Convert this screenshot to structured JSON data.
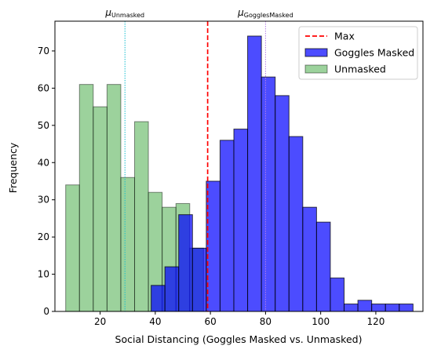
{
  "chart_data": {
    "type": "bar",
    "xlabel": "Social Distancing (Goggles Masked vs. Unmasked)",
    "ylabel": "Frequency",
    "xlim": [
      3.6,
      137.1
    ],
    "ylim": [
      0,
      78
    ],
    "xticks": [
      20,
      40,
      60,
      80,
      100,
      120
    ],
    "yticks": [
      0,
      10,
      20,
      30,
      40,
      50,
      60,
      70
    ],
    "grid": false,
    "legend_position": "top-right",
    "series": [
      {
        "name": "Unmasked",
        "color": "#2ca02c",
        "edge_color": "#000000",
        "bin_width": 5.0,
        "bin_starts": [
          7.5,
          12.5,
          17.5,
          22.5,
          27.5,
          32.5,
          37.5,
          42.5,
          47.5,
          52.5
        ],
        "values": [
          34,
          61,
          55,
          61,
          36,
          51,
          32,
          28,
          29,
          17
        ]
      },
      {
        "name": "Goggles Masked",
        "color": "#0000ff",
        "edge_color": "#000000",
        "bin_width": 5.0,
        "bin_starts": [
          38.5,
          43.5,
          48.5,
          53.5,
          58.5,
          63.5,
          68.5,
          73.5,
          78.5,
          83.5,
          88.5,
          93.5,
          98.5,
          103.5,
          108.5,
          113.5,
          118.5,
          123.5,
          128.5
        ],
        "values": [
          7,
          12,
          26,
          17,
          35,
          46,
          49,
          74,
          63,
          58,
          47,
          28,
          24,
          9,
          2,
          3,
          2,
          2,
          2
        ]
      }
    ],
    "reference_lines": [
      {
        "name": "Max",
        "x": 59,
        "color": "#ff0000",
        "style": "dashed",
        "in_legend": true
      },
      {
        "name": "mu-unmasked",
        "x": 29,
        "color": "#17becf",
        "style": "dotted",
        "in_legend": false,
        "label": "μ",
        "label_sub": "Unmasked"
      },
      {
        "name": "mu-goggles",
        "x": 80,
        "color": "#b57fe5",
        "style": "dotted",
        "in_legend": false,
        "label": "μ",
        "label_sub": "GogglesMasked"
      }
    ],
    "legend_order": [
      "Max",
      "Goggles Masked",
      "Unmasked"
    ]
  }
}
